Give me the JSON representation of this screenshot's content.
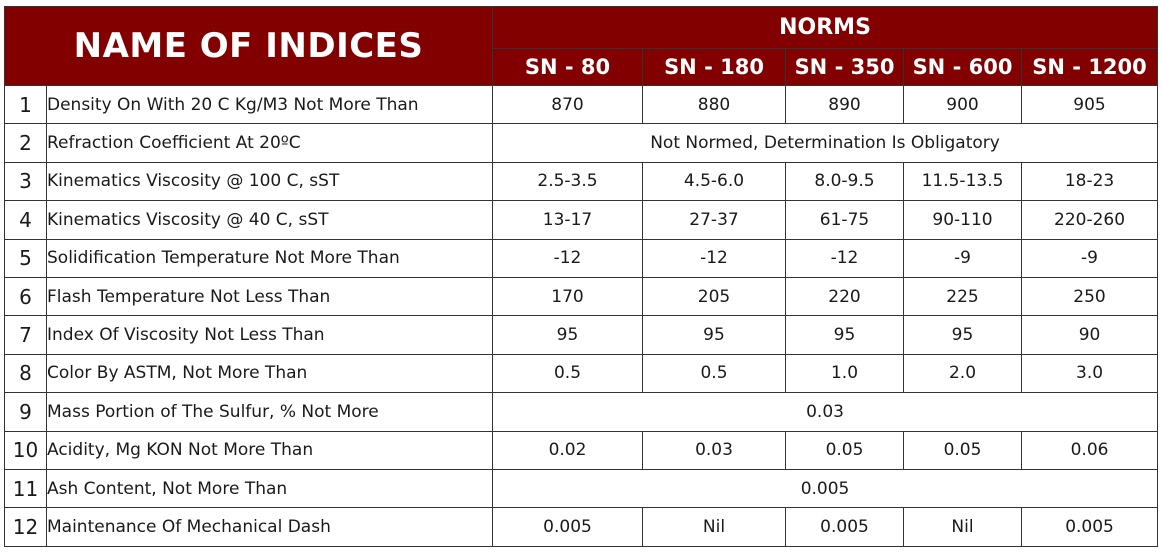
{
  "header": {
    "title": "NAME OF INDICES",
    "norms_label": "NORMS",
    "grades": [
      "SN - 80",
      "SN - 180",
      "SN - 350",
      "SN - 600",
      "SN - 1200"
    ]
  },
  "rows": [
    {
      "num": "1",
      "name": "Density On With 20 C Kg/M3 Not More Than",
      "values": [
        "870",
        "880",
        "890",
        "900",
        "905"
      ]
    },
    {
      "num": "2",
      "name": "Refraction Coefficient At 20ºC",
      "span": "Not Normed, Determination Is Obligatory"
    },
    {
      "num": "3",
      "name": "Kinematics Viscosity @ 100 C, sST",
      "values": [
        "2.5-3.5",
        "4.5-6.0",
        "8.0-9.5",
        "11.5-13.5",
        "18-23"
      ]
    },
    {
      "num": "4",
      "name": "Kinematics Viscosity @ 40 C, sST",
      "values": [
        "13-17",
        "27-37",
        "61-75",
        "90-110",
        "220-260"
      ]
    },
    {
      "num": "5",
      "name": "Solidification Temperature Not More Than",
      "values": [
        "-12",
        "-12",
        "-12",
        "-9",
        "-9"
      ]
    },
    {
      "num": "6",
      "name": "Flash Temperature Not Less Than",
      "values": [
        "170",
        "205",
        "220",
        "225",
        "250"
      ]
    },
    {
      "num": "7",
      "name": "Index Of Viscosity Not Less Than",
      "values": [
        "95",
        "95",
        "95",
        "95",
        "90"
      ]
    },
    {
      "num": "8",
      "name": "Color By ASTM, Not More Than",
      "values": [
        "0.5",
        "0.5",
        "1.0",
        "2.0",
        "3.0"
      ]
    },
    {
      "num": "9",
      "name": "Mass Portion of The Sulfur, % Not More",
      "span": "0.03"
    },
    {
      "num": "10",
      "name": "Acidity, Mg KON Not More Than",
      "values": [
        "0.02",
        "0.03",
        "0.05",
        "0.05",
        "0.06"
      ]
    },
    {
      "num": "11",
      "name": "Ash Content, Not More Than",
      "span": "0.005"
    },
    {
      "num": "12",
      "name": "Maintenance Of Mechanical Dash",
      "values": [
        "0.005",
        "Nil",
        "0.005",
        "Nil",
        "0.005"
      ]
    }
  ]
}
